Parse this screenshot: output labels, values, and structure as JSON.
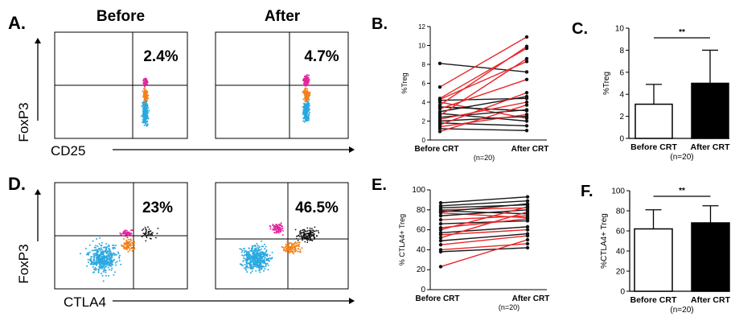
{
  "colors": {
    "red_line": "#e8262a",
    "black_line": "#1a1a1a",
    "magenta": "#e0289c",
    "orange": "#f0821e",
    "cyan": "#2aa8e0"
  },
  "flow": {
    "panel_a": {
      "label": "A.",
      "col_before": "Before",
      "col_after": "After",
      "y_axis": "FoxP3",
      "x_axis": "CD25",
      "pct_before": "2.4%",
      "pct_after": "4.7%"
    },
    "panel_d": {
      "label": "D.",
      "y_axis": "FoxP3",
      "x_axis": "CTLA4",
      "pct_before": "23%",
      "pct_after": "46.5%"
    }
  },
  "chart_data": [
    {
      "id": "B",
      "type": "line",
      "label": "B.",
      "ylabel": "%Treg",
      "ylim": [
        0,
        12
      ],
      "yticks": [
        "0",
        "2",
        "4",
        "6",
        "8",
        "10",
        "12"
      ],
      "categories": [
        "Before CRT",
        "After CRT"
      ],
      "note": "(n=20)",
      "pairs": [
        {
          "before": 8.1,
          "after": 7.2,
          "color": "black"
        },
        {
          "before": 5.6,
          "after": 10.9,
          "color": "red"
        },
        {
          "before": 4.4,
          "after": 9.7,
          "color": "red"
        },
        {
          "before": 4.3,
          "after": 8.3,
          "color": "red"
        },
        {
          "before": 4.2,
          "after": 4.4,
          "color": "black"
        },
        {
          "before": 4.0,
          "after": 2.3,
          "color": "red"
        },
        {
          "before": 3.7,
          "after": 9.9,
          "color": "red"
        },
        {
          "before": 3.5,
          "after": 3.1,
          "color": "black"
        },
        {
          "before": 3.3,
          "after": 6.4,
          "color": "red"
        },
        {
          "before": 3.0,
          "after": 4.6,
          "color": "black"
        },
        {
          "before": 2.8,
          "after": 2.0,
          "color": "black"
        },
        {
          "before": 2.6,
          "after": 8.6,
          "color": "red"
        },
        {
          "before": 2.4,
          "after": 3.2,
          "color": "black"
        },
        {
          "before": 2.2,
          "after": 4.0,
          "color": "red"
        },
        {
          "before": 2.0,
          "after": 2.5,
          "color": "black"
        },
        {
          "before": 1.8,
          "after": 1.5,
          "color": "black"
        },
        {
          "before": 1.6,
          "after": 5.0,
          "color": "red"
        },
        {
          "before": 1.4,
          "after": 2.7,
          "color": "red"
        },
        {
          "before": 1.2,
          "after": 1.0,
          "color": "black"
        },
        {
          "before": 0.9,
          "after": 3.7,
          "color": "red"
        }
      ]
    },
    {
      "id": "C",
      "type": "bar",
      "label": "C.",
      "ylabel": "%Treg",
      "ylim": [
        0,
        10
      ],
      "yticks": [
        "0",
        "2",
        "4",
        "6",
        "8",
        "10"
      ],
      "categories": [
        "Before CRT",
        "After CRT"
      ],
      "values": [
        3.1,
        5.0
      ],
      "errors": [
        1.8,
        3.0
      ],
      "fills": [
        "white",
        "black"
      ],
      "significance": "**",
      "note": "(n=20)"
    },
    {
      "id": "E",
      "type": "line",
      "label": "E.",
      "ylabel": "% CTLA4+ Treg",
      "ylim": [
        0,
        100
      ],
      "yticks": [
        "0",
        "20",
        "40",
        "60",
        "80",
        "100"
      ],
      "categories": [
        "Before CRT",
        "After CRT"
      ],
      "note": "(n=20)",
      "pairs": [
        {
          "before": 87,
          "after": 93,
          "color": "black"
        },
        {
          "before": 84,
          "after": 89,
          "color": "black"
        },
        {
          "before": 82,
          "after": 85,
          "color": "black"
        },
        {
          "before": 80,
          "after": 82,
          "color": "red"
        },
        {
          "before": 79,
          "after": 76,
          "color": "black"
        },
        {
          "before": 78,
          "after": 86,
          "color": "black"
        },
        {
          "before": 77,
          "after": 72,
          "color": "red"
        },
        {
          "before": 74,
          "after": 80,
          "color": "black"
        },
        {
          "before": 70,
          "after": 74,
          "color": "red"
        },
        {
          "before": 66,
          "after": 69,
          "color": "black"
        },
        {
          "before": 62,
          "after": 71,
          "color": "red"
        },
        {
          "before": 60,
          "after": 83,
          "color": "red"
        },
        {
          "before": 57,
          "after": 63,
          "color": "black"
        },
        {
          "before": 55,
          "after": 60,
          "color": "red"
        },
        {
          "before": 52,
          "after": 78,
          "color": "red"
        },
        {
          "before": 49,
          "after": 56,
          "color": "black"
        },
        {
          "before": 45,
          "after": 54,
          "color": "red"
        },
        {
          "before": 40,
          "after": 46,
          "color": "red"
        },
        {
          "before": 38,
          "after": 42,
          "color": "black"
        },
        {
          "before": 23,
          "after": 50,
          "color": "red"
        }
      ]
    },
    {
      "id": "F",
      "type": "bar",
      "label": "F.",
      "ylabel": "%CTLA4+ Treg",
      "ylim": [
        0,
        100
      ],
      "yticks": [
        "0",
        "20",
        "40",
        "60",
        "80",
        "100"
      ],
      "categories": [
        "Before CRT",
        "After CRT"
      ],
      "values": [
        62,
        68
      ],
      "errors": [
        19,
        17
      ],
      "fills": [
        "white",
        "black"
      ],
      "significance": "**",
      "note": "(n=20)"
    }
  ]
}
